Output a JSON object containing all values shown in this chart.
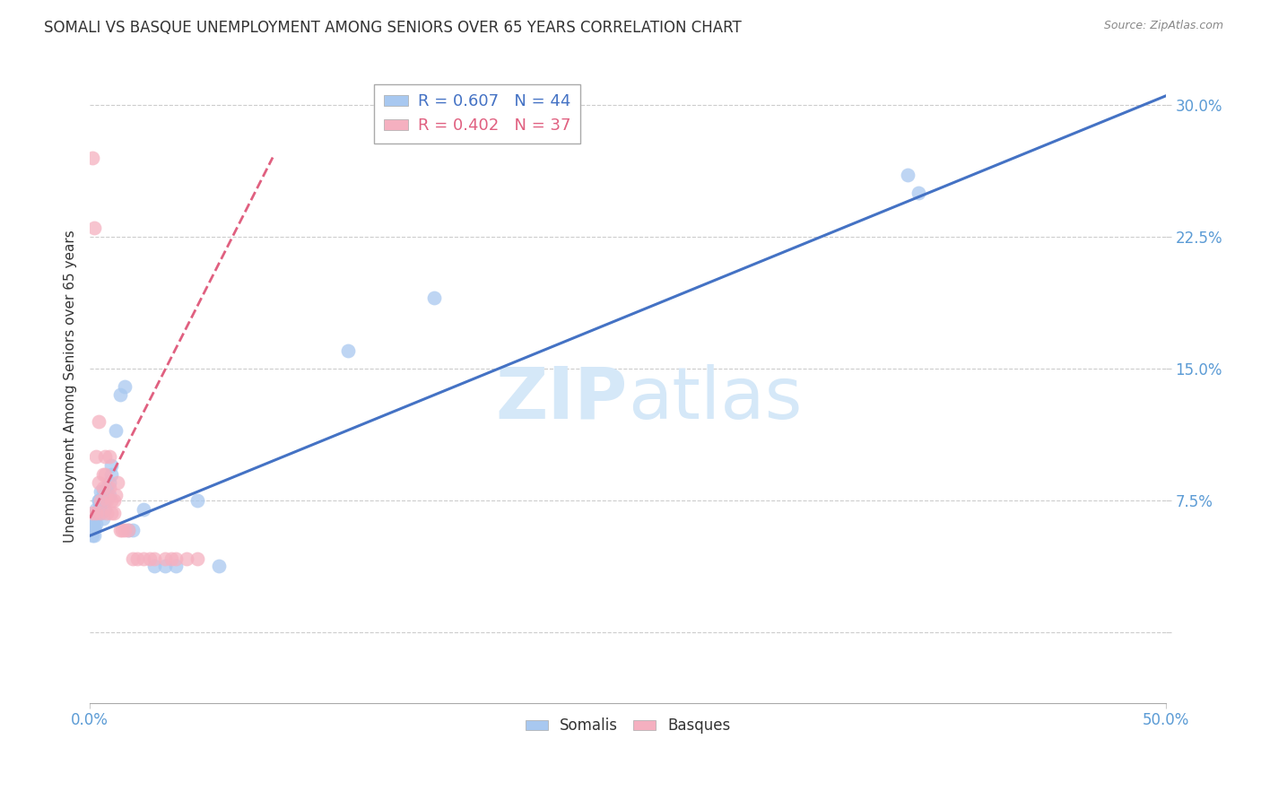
{
  "title": "SOMALI VS BASQUE UNEMPLOYMENT AMONG SENIORS OVER 65 YEARS CORRELATION CHART",
  "source": "Source: ZipAtlas.com",
  "ylabel": "Unemployment Among Seniors over 65 years",
  "xlim": [
    0.0,
    0.5
  ],
  "ylim": [
    -0.04,
    0.32
  ],
  "xtick_left": 0.0,
  "xtick_right": 0.5,
  "xtick_left_label": "0.0%",
  "xtick_right_label": "50.0%",
  "yticks": [
    0.0,
    0.075,
    0.15,
    0.225,
    0.3
  ],
  "yticklabels": [
    "",
    "7.5%",
    "15.0%",
    "22.5%",
    "30.0%"
  ],
  "somali_R": 0.607,
  "somali_N": 44,
  "basque_R": 0.402,
  "basque_N": 37,
  "somali_color": "#a8c8f0",
  "basque_color": "#f5b0c0",
  "somali_line_color": "#4472c4",
  "basque_line_color": "#e06080",
  "background_color": "#ffffff",
  "grid_color": "#cccccc",
  "title_color": "#333333",
  "tick_color": "#5b9bd5",
  "watermark_color": "#d5e8f8",
  "somali_x": [
    0.001,
    0.001,
    0.001,
    0.002,
    0.002,
    0.002,
    0.002,
    0.003,
    0.003,
    0.003,
    0.003,
    0.004,
    0.004,
    0.004,
    0.005,
    0.005,
    0.005,
    0.005,
    0.006,
    0.006,
    0.006,
    0.007,
    0.007,
    0.008,
    0.008,
    0.009,
    0.009,
    0.01,
    0.01,
    0.012,
    0.014,
    0.016,
    0.018,
    0.02,
    0.025,
    0.03,
    0.035,
    0.04,
    0.05,
    0.06,
    0.12,
    0.16,
    0.38,
    0.385
  ],
  "somali_y": [
    0.06,
    0.065,
    0.055,
    0.065,
    0.06,
    0.06,
    0.055,
    0.068,
    0.068,
    0.07,
    0.062,
    0.075,
    0.075,
    0.07,
    0.075,
    0.08,
    0.07,
    0.068,
    0.08,
    0.075,
    0.065,
    0.075,
    0.07,
    0.082,
    0.078,
    0.085,
    0.078,
    0.09,
    0.095,
    0.115,
    0.135,
    0.14,
    0.058,
    0.058,
    0.07,
    0.038,
    0.038,
    0.038,
    0.075,
    0.038,
    0.16,
    0.19,
    0.26,
    0.25
  ],
  "basque_x": [
    0.001,
    0.001,
    0.002,
    0.003,
    0.003,
    0.004,
    0.004,
    0.005,
    0.005,
    0.006,
    0.006,
    0.007,
    0.007,
    0.008,
    0.008,
    0.009,
    0.009,
    0.01,
    0.01,
    0.011,
    0.011,
    0.012,
    0.013,
    0.014,
    0.015,
    0.016,
    0.018,
    0.02,
    0.022,
    0.025,
    0.028,
    0.03,
    0.035,
    0.038,
    0.04,
    0.045,
    0.05
  ],
  "basque_y": [
    0.27,
    0.068,
    0.23,
    0.1,
    0.068,
    0.085,
    0.12,
    0.075,
    0.068,
    0.082,
    0.09,
    0.09,
    0.1,
    0.068,
    0.075,
    0.082,
    0.1,
    0.075,
    0.068,
    0.068,
    0.075,
    0.078,
    0.085,
    0.058,
    0.058,
    0.058,
    0.058,
    0.042,
    0.042,
    0.042,
    0.042,
    0.042,
    0.042,
    0.042,
    0.042,
    0.042,
    0.042
  ],
  "somali_trend_x": [
    0.0,
    0.5
  ],
  "somali_trend_y": [
    0.055,
    0.305
  ],
  "basque_trend_x": [
    0.0,
    0.085
  ],
  "basque_trend_y": [
    0.065,
    0.27
  ]
}
